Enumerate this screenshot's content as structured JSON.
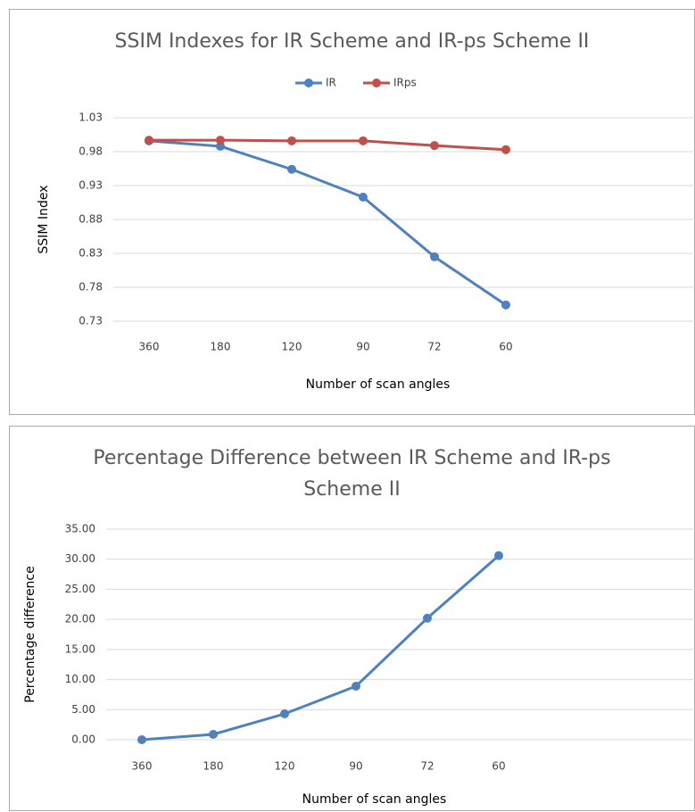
{
  "chart_data": [
    {
      "type": "line",
      "title": "SSIM Indexes for IR Scheme and IR-ps Scheme II",
      "x_label": "Number of scan angles",
      "y_label": "SSIM Index",
      "categories": [
        "360",
        "180",
        "120",
        "90",
        "72",
        "60"
      ],
      "series": [
        {
          "name": "IR",
          "color": "#4f81bd",
          "values": [
            0.996,
            0.988,
            0.954,
            0.913,
            0.825,
            0.754
          ]
        },
        {
          "name": "IRps",
          "color": "#c0504d",
          "values": [
            0.997,
            0.997,
            0.996,
            0.996,
            0.989,
            0.983
          ]
        }
      ],
      "ylim": [
        0.73,
        1.03
      ],
      "yticks": [
        0.73,
        0.78,
        0.83,
        0.88,
        0.93,
        0.98,
        1.03
      ],
      "grid": true,
      "legend": "top"
    },
    {
      "type": "line",
      "title": "Percentage Difference between IR Scheme and IR-ps Scheme II",
      "x_label": "Number of scan angles",
      "y_label": "Percentage difference",
      "categories": [
        "360",
        "180",
        "120",
        "90",
        "72",
        "60"
      ],
      "color": "#4f81bd",
      "values": [
        0,
        0.89,
        4.3,
        8.9,
        20.2,
        30.6
      ],
      "ylim": [
        0,
        35
      ],
      "yticks": [
        {
          "value": 0,
          "label": "0.00"
        },
        {
          "value": 5,
          "label": "5.00"
        },
        {
          "value": 10,
          "label": "10.00"
        },
        {
          "value": 15,
          "label": "15.00"
        },
        {
          "value": 20,
          "label": "20.00"
        },
        {
          "value": 25,
          "label": "25.00"
        },
        {
          "value": 30,
          "label": "30.00"
        },
        {
          "value": 35,
          "label": "35.00"
        }
      ],
      "grid": true
    }
  ]
}
